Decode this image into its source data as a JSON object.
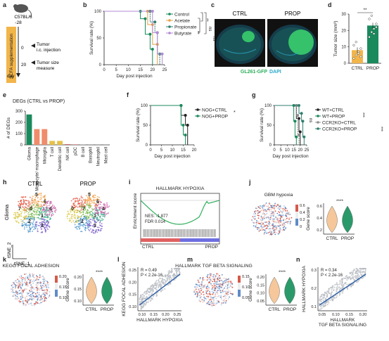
{
  "panel_letters": [
    "a",
    "b",
    "c",
    "d",
    "e",
    "f",
    "g",
    "h",
    "i",
    "j",
    "k",
    "l",
    "m",
    "n"
  ],
  "a": {
    "mouse": "C57BL/6",
    "timeline": [
      "-28",
      "0",
      "20"
    ],
    "scfa_bar": "SCFA supplementation",
    "ev1": [
      "Tumor",
      "i.c. injection"
    ],
    "ev2": [
      "Tumor size",
      "measure"
    ],
    "axis": "day"
  },
  "b": {
    "ylabel": "Survival rate (%)",
    "xlabel": "Day post injection",
    "xticks": [
      0,
      5,
      10,
      15,
      20,
      25
    ],
    "yticks": [
      0,
      50,
      100
    ],
    "legend": [
      "Control",
      "Acetate",
      "Propionate",
      "Butyrate"
    ],
    "sig": [
      "**",
      "**",
      "ns",
      "ns"
    ]
  },
  "c": {
    "labels": [
      "CTRL",
      "PROP"
    ],
    "caption_green": "GL261-GFP",
    "caption_blue": "DAPI"
  },
  "d": {
    "ylabel": "Tumor size (mm³)",
    "yticks": [
      0,
      10,
      20,
      30
    ],
    "categories": [
      "CTRL",
      "PROP"
    ],
    "sig": "**"
  },
  "e": {
    "title": "DEGs (CTRL vs PROP)",
    "ylabel": "# of DEGs",
    "yticks": [
      0,
      100,
      200,
      300
    ],
    "categories": [
      "Glioma",
      "Monocyte/ macrophage",
      "Microglia",
      "T cell",
      "Dendritic cell",
      "NK cell",
      "pDC",
      "B cell",
      "Basophil",
      "Neutrophil",
      "Mast cell"
    ]
  },
  "f": {
    "ylabel": "Survival rate (%)",
    "xlabel": "Day post injection",
    "xticks": [
      0,
      5,
      10,
      15,
      20
    ],
    "yticks": [
      0,
      50,
      100
    ],
    "legend": [
      "NOG+CTRL",
      "NOG+PROP"
    ],
    "sig": "*"
  },
  "g": {
    "ylabel": "Survival rate (%)",
    "xlabel": "Day post injection",
    "xticks": [
      0,
      5,
      10,
      15,
      20,
      25
    ],
    "yticks": [
      0,
      50,
      100
    ],
    "legend": [
      "WT+CTRL",
      "WT+PROP",
      "CCR2KO+CTRL",
      "CCR2KO+PROP"
    ],
    "sig": [
      "ns",
      "***",
      "***"
    ]
  },
  "h": {
    "labels": [
      "CTRL",
      "PROP"
    ],
    "side": "Glioma",
    "ax_y": "tSNE_2",
    "ax_x": "tSNE_1",
    "ctrl_clusters": [
      "5",
      "6",
      "7",
      "0",
      "1",
      "2",
      "3",
      "4"
    ],
    "prop_clusters": [
      "5",
      "6",
      "0",
      "7",
      "1",
      "2",
      "3",
      "4"
    ]
  },
  "i": {
    "title": "HALLMARK HYPOXIA",
    "ylabel": "Enrichment score",
    "nes": "NES: -1.877",
    "fdr": "FDR  0.014",
    "ctrl": "CTRL",
    "prop": "PROP"
  },
  "j": {
    "title": "GBM hypoxia",
    "cbar": [
      "0.6",
      "0.4",
      "0.2",
      "0"
    ],
    "ylabel": "Gene score",
    "yticks": [
      "0.2",
      "0.4",
      "0.6"
    ],
    "categories": [
      "CTRL",
      "PROP"
    ],
    "sig": "****"
  },
  "k": {
    "title": "KEGG FOCAL ADHESION",
    "cbar": [
      "0.20",
      "0.15",
      "0.10"
    ],
    "ylabel": "Gene score",
    "yticks": [
      "0.10",
      "0.15",
      "0.20"
    ],
    "categories": [
      "CTRL",
      "PROP"
    ],
    "sig": "****"
  },
  "l": {
    "stat1": "R = 0.49",
    "stat2": "P < 2.2e-16",
    "xlabel": "HALLMARK HYPOXIA",
    "ylabel": "KEGG FOCAL ADHESION",
    "xticks": [
      "0.10",
      "0.15",
      "0.20",
      "0.25"
    ],
    "yticks": [
      "0.10",
      "0.15",
      "0.20",
      "0.25"
    ]
  },
  "m": {
    "title": "HALLMARK TGF BETA SIGNALING",
    "cbar": [
      "0.15",
      "0.10",
      "0.05"
    ],
    "ylabel": "Gene score",
    "yticks": [
      "0.05",
      "0.10",
      "0.15",
      "0.20"
    ],
    "categories": [
      "CTRL",
      "PROP"
    ],
    "sig": "****"
  },
  "n": {
    "stat1": "R = 0.34",
    "stat2": "P < 2.2e-16",
    "xlabel1": "HALLMARK",
    "xlabel2": "TGF BETA SIGNALING",
    "ylabel": "HALLMARK HYPOXIA",
    "xticks": [
      "0.05",
      "0.10",
      "0.15",
      "0.20"
    ],
    "yticks": [
      "0.1",
      "0.2",
      "0.3"
    ]
  },
  "colors": {
    "green": "#1a8a5c",
    "orange": "#e8a04a",
    "teal": "#2f7f6f",
    "purple": "#b38ad6",
    "black": "#222222",
    "gray": "#8f8f8f",
    "scfa": "#f2b54a",
    "dapi": "#2aa7c9",
    "gfp": "#2fae5c"
  },
  "chart_data": [
    {
      "panel": "b",
      "type": "line",
      "xlabel": "Day post injection",
      "ylabel": "Survival rate (%)",
      "xlim": [
        0,
        25
      ],
      "ylim": [
        0,
        100
      ],
      "series": [
        {
          "name": "Control",
          "x": [
            0,
            15,
            15,
            17,
            17,
            19,
            19,
            20,
            20
          ],
          "y": [
            100,
            100,
            86,
            86,
            57,
            57,
            29,
            29,
            0
          ]
        },
        {
          "name": "Acetate",
          "x": [
            0,
            18,
            18,
            20,
            20,
            22,
            22
          ],
          "y": [
            100,
            100,
            75,
            75,
            38,
            38,
            0
          ]
        },
        {
          "name": "Propionate",
          "x": [
            0,
            19,
            19,
            21,
            21,
            22,
            22,
            23,
            23
          ],
          "y": [
            100,
            100,
            80,
            80,
            60,
            60,
            20,
            20,
            0
          ]
        },
        {
          "name": "Butyrate",
          "x": [
            0,
            20,
            20,
            22,
            22,
            24,
            24
          ],
          "y": [
            100,
            100,
            60,
            60,
            20,
            20,
            0
          ]
        }
      ]
    },
    {
      "panel": "d",
      "type": "bar",
      "categories": [
        "CTRL",
        "PROP"
      ],
      "values": [
        8,
        23
      ],
      "ylim": [
        0,
        30
      ],
      "points": [
        [
          3,
          5,
          7,
          9,
          11,
          13,
          6,
          4
        ],
        [
          16,
          19,
          21,
          24,
          27,
          29,
          18,
          22
        ]
      ]
    },
    {
      "panel": "e",
      "type": "bar",
      "title": "DEGs (CTRL vs PROP)",
      "ylabel": "# of DEGs",
      "ylim": [
        0,
        300
      ],
      "categories": [
        "Glioma",
        "Monocyte/ macrophage",
        "Microglia",
        "T cell",
        "Dendritic cell",
        "NK cell",
        "pDC",
        "B cell",
        "Basophil",
        "Neutrophil",
        "Mast cell"
      ],
      "values": [
        270,
        140,
        140,
        35,
        35,
        5,
        3,
        3,
        2,
        2,
        2
      ],
      "bar_colors": [
        "#1a8a5c",
        "#f08c6a",
        "#f08c6a",
        "#e6c04a",
        "#e6c04a",
        "#c44",
        "#c44",
        "#888",
        "#888",
        "#888",
        "#888"
      ]
    },
    {
      "panel": "f",
      "type": "line",
      "xlabel": "Day post injection",
      "ylabel": "Survival rate (%)",
      "xlim": [
        0,
        20
      ],
      "ylim": [
        0,
        100
      ],
      "series": [
        {
          "name": "NOG+CTRL",
          "x": [
            0,
            14,
            14,
            16,
            16,
            17,
            17
          ],
          "y": [
            100,
            100,
            75,
            75,
            50,
            50,
            0
          ]
        },
        {
          "name": "NOG+PROP",
          "x": [
            0,
            14,
            14,
            15,
            15,
            16,
            16
          ],
          "y": [
            100,
            100,
            50,
            50,
            25,
            25,
            0
          ]
        }
      ]
    },
    {
      "panel": "g",
      "type": "line",
      "xlabel": "Day post injection",
      "ylabel": "Survival rate (%)",
      "xlim": [
        0,
        25
      ],
      "ylim": [
        0,
        100
      ],
      "series": [
        {
          "name": "WT+CTRL",
          "x": [
            0,
            17,
            17,
            19,
            19,
            20,
            20
          ],
          "y": [
            100,
            100,
            67,
            67,
            33,
            33,
            0
          ]
        },
        {
          "name": "WT+PROP",
          "x": [
            0,
            15,
            15,
            16,
            16,
            17,
            17
          ],
          "y": [
            100,
            100,
            60,
            60,
            20,
            20,
            0
          ]
        },
        {
          "name": "CCR2KO+CTRL",
          "x": [
            0,
            17,
            17,
            18,
            18,
            19,
            19
          ],
          "y": [
            100,
            100,
            75,
            75,
            25,
            25,
            0
          ]
        },
        {
          "name": "CCR2KO+PROP",
          "x": [
            0,
            19,
            19,
            21,
            21,
            22,
            22,
            23,
            23
          ],
          "y": [
            100,
            100,
            80,
            80,
            60,
            60,
            20,
            20,
            0
          ]
        }
      ]
    },
    {
      "panel": "l",
      "type": "scatter",
      "xlabel": "HALLMARK HYPOXIA",
      "ylabel": "KEGG FOCAL ADHESION",
      "fit": {
        "slope": 0.42,
        "intercept": 0.06
      }
    },
    {
      "panel": "n",
      "type": "scatter",
      "xlabel": "HALLMARK TGF BETA SIGNALING",
      "ylabel": "HALLMARK HYPOXIA",
      "fit": {
        "slope": 0.55,
        "intercept": 0.08
      }
    }
  ]
}
